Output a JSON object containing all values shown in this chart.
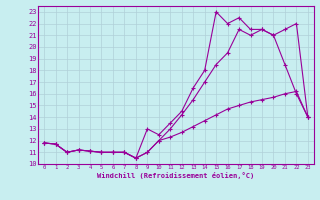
{
  "xlabel": "Windchill (Refroidissement éolien,°C)",
  "bg_color": "#c8eef0",
  "grid_color": "#b0d0d8",
  "line_color": "#990099",
  "xlim": [
    -0.5,
    23.5
  ],
  "ylim": [
    10,
    23.5
  ],
  "xticks": [
    0,
    1,
    2,
    3,
    4,
    5,
    6,
    7,
    8,
    9,
    10,
    11,
    12,
    13,
    14,
    15,
    16,
    17,
    18,
    19,
    20,
    21,
    22,
    23
  ],
  "yticks": [
    10,
    11,
    12,
    13,
    14,
    15,
    16,
    17,
    18,
    19,
    20,
    21,
    22,
    23
  ],
  "line1_x": [
    0,
    1,
    2,
    3,
    4,
    5,
    6,
    7,
    8,
    9,
    10,
    11,
    12,
    13,
    14,
    15,
    16,
    17,
    18,
    19,
    20,
    21,
    22,
    23
  ],
  "line1_y": [
    11.8,
    11.7,
    11.0,
    11.2,
    11.1,
    11.0,
    11.0,
    11.0,
    10.5,
    11.0,
    12.0,
    12.3,
    12.7,
    13.2,
    13.7,
    14.2,
    14.7,
    15.0,
    15.3,
    15.5,
    15.7,
    16.0,
    16.2,
    14.0
  ],
  "line2_x": [
    0,
    1,
    2,
    3,
    4,
    5,
    6,
    7,
    8,
    9,
    10,
    11,
    12,
    13,
    14,
    15,
    16,
    17,
    18,
    19,
    20,
    21,
    22,
    23
  ],
  "line2_y": [
    11.8,
    11.7,
    11.0,
    11.2,
    11.1,
    11.0,
    11.0,
    11.0,
    10.5,
    11.0,
    12.0,
    13.0,
    14.2,
    15.5,
    17.0,
    18.5,
    19.5,
    21.5,
    21.0,
    21.5,
    21.0,
    21.5,
    22.0,
    14.0
  ],
  "line3_x": [
    0,
    1,
    2,
    3,
    4,
    5,
    6,
    7,
    8,
    9,
    10,
    11,
    12,
    13,
    14,
    15,
    16,
    17,
    18,
    19,
    20,
    21,
    22,
    23
  ],
  "line3_y": [
    11.8,
    11.7,
    11.0,
    11.2,
    11.1,
    11.0,
    11.0,
    11.0,
    10.5,
    13.0,
    12.5,
    13.5,
    14.5,
    16.5,
    18.0,
    23.0,
    22.0,
    22.5,
    21.5,
    21.5,
    21.0,
    18.5,
    16.0,
    14.0
  ]
}
